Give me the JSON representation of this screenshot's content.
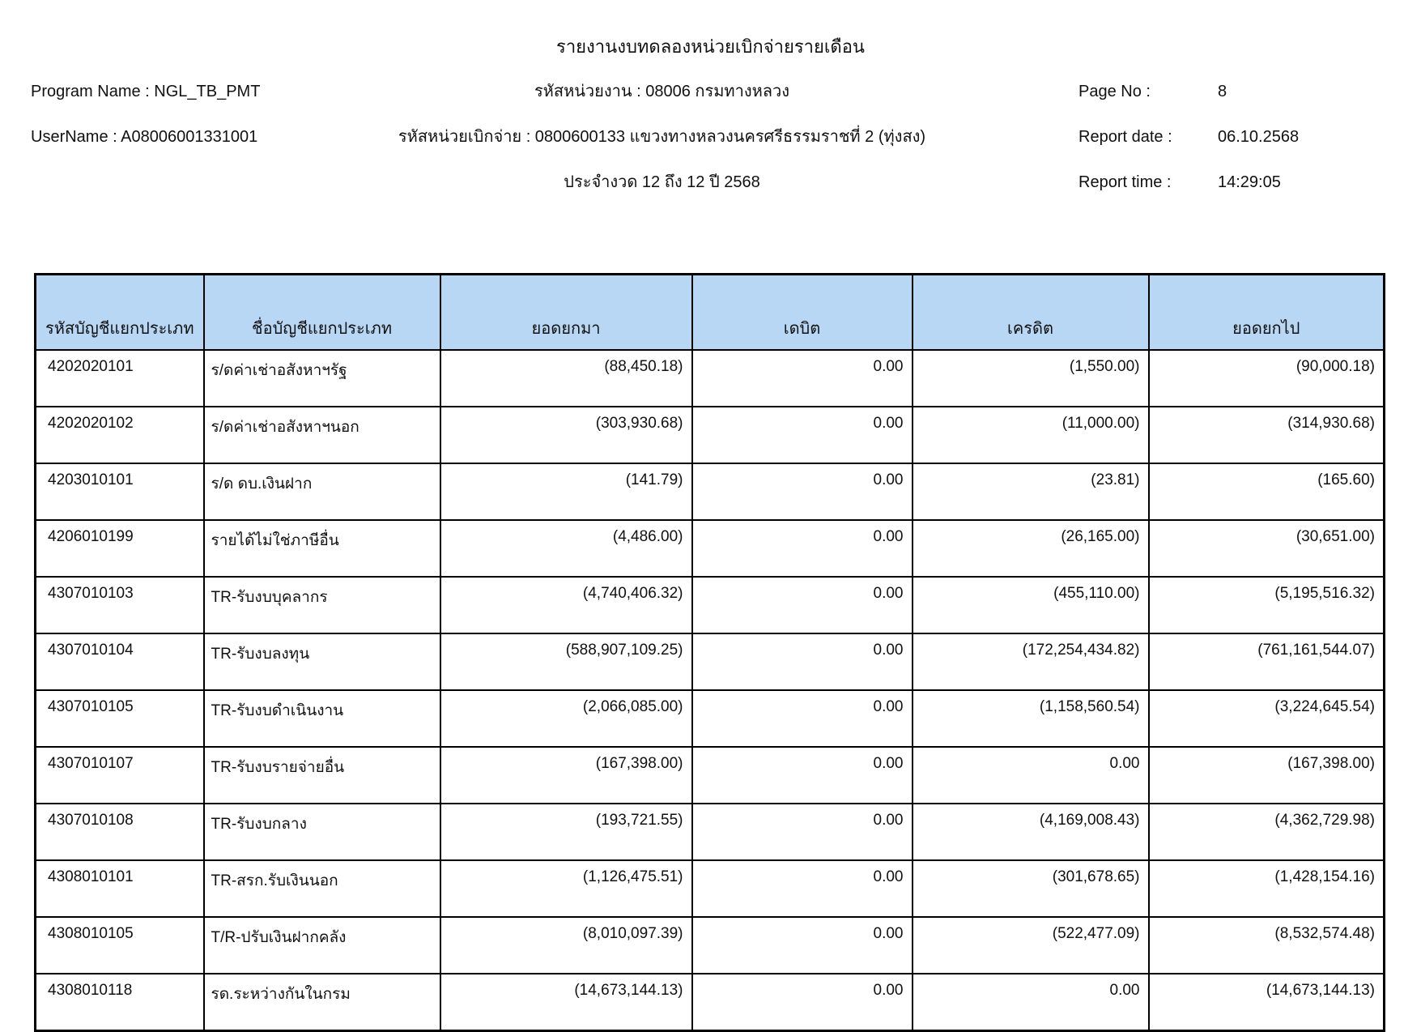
{
  "report": {
    "title": "รายงานงบทดลองหน่วยเบิกจ่ายรายเดือน",
    "program_name_line": "Program Name : NGL_TB_PMT",
    "username_line": "UserName : A08006001331001",
    "agency_line": "รหัสหน่วยงาน : 08006 กรมทางหลวง",
    "disbursement_unit_line": "รหัสหน่วยเบิกจ่าย : 0800600133 แขวงทางหลวงนครศรีธรรมราชที่ 2 (ทุ่งสง)",
    "period_line": "ประจำงวด 12 ถึง 12 ปี 2568",
    "page_no_label": "Page No :",
    "page_no_value": "8",
    "report_date_label": "Report date :",
    "report_date_value": "06.10.2568",
    "report_time_label": "Report time :",
    "report_time_value": "14:29:05"
  },
  "colors": {
    "header_bg": "#B8D7F4",
    "border": "#000000"
  },
  "table": {
    "columns": [
      "รหัสบัญชีแยกประเภท",
      "ชื่อบัญชีแยกประเภท",
      "ยอดยกมา",
      "เดบิต",
      "เครดิต",
      "ยอดยกไป"
    ],
    "rows": [
      [
        "4202020101",
        "ร/ดค่าเช่าอสังหาฯรัฐ",
        "(88,450.18)",
        "0.00",
        "(1,550.00)",
        "(90,000.18)"
      ],
      [
        "4202020102",
        "ร/ดค่าเช่าอสังหาฯนอก",
        "(303,930.68)",
        "0.00",
        "(11,000.00)",
        "(314,930.68)"
      ],
      [
        "4203010101",
        "ร/ด ดบ.เงินฝาก",
        "(141.79)",
        "0.00",
        "(23.81)",
        "(165.60)"
      ],
      [
        "4206010199",
        "รายได้ไม่ใช่ภาษีอื่น",
        "(4,486.00)",
        "0.00",
        "(26,165.00)",
        "(30,651.00)"
      ],
      [
        "4307010103",
        "TR-รับงบบุคลากร",
        "(4,740,406.32)",
        "0.00",
        "(455,110.00)",
        "(5,195,516.32)"
      ],
      [
        "4307010104",
        "TR-รับงบลงทุน",
        "(588,907,109.25)",
        "0.00",
        "(172,254,434.82)",
        "(761,161,544.07)"
      ],
      [
        "4307010105",
        "TR-รับงบดำเนินงาน",
        "(2,066,085.00)",
        "0.00",
        "(1,158,560.54)",
        "(3,224,645.54)"
      ],
      [
        "4307010107",
        "TR-รับงบรายจ่ายอื่น",
        "(167,398.00)",
        "0.00",
        "0.00",
        "(167,398.00)"
      ],
      [
        "4307010108",
        "TR-รับงบกลาง",
        "(193,721.55)",
        "0.00",
        "(4,169,008.43)",
        "(4,362,729.98)"
      ],
      [
        "4308010101",
        "TR-สรก.รับเงินนอก",
        "(1,126,475.51)",
        "0.00",
        "(301,678.65)",
        "(1,428,154.16)"
      ],
      [
        "4308010105",
        "T/R-ปรับเงินฝากคลัง",
        "(8,010,097.39)",
        "0.00",
        "(522,477.09)",
        "(8,532,574.48)"
      ],
      [
        "4308010118",
        "รด.ระหว่างกันในกรม",
        "(14,673,144.13)",
        "0.00",
        "0.00",
        "(14,673,144.13)"
      ]
    ],
    "cell_names": [
      "account-code-cell",
      "account-name-cell",
      "opening-balance-cell",
      "debit-cell",
      "credit-cell",
      "closing-balance-cell"
    ]
  }
}
